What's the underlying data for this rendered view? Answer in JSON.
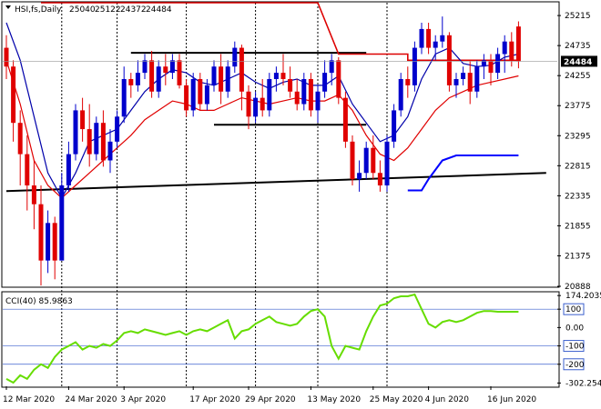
{
  "chart_data": [
    {
      "type": "candlestick",
      "instrument_label": "HSI,fs,Daily",
      "ohlc_header": {
        "open": "25040",
        "high": "25122",
        "low": "24372",
        "close": "24484"
      },
      "current_price_label": "24484",
      "y_ticks": [
        25215,
        24735,
        24255,
        23775,
        23295,
        22815,
        22335,
        21855,
        21375,
        20888
      ],
      "ylim": [
        20888,
        25420
      ],
      "x_labels": [
        "12 Mar 2020",
        "24 Mar 2020",
        "3 Apr 2020",
        "17 Apr 2020",
        "29 Apr 2020",
        "13 May 2020",
        "25 May 2020",
        "4 Jun 2020",
        "16 Jun 2020"
      ],
      "x_label_index": [
        0,
        9,
        17,
        27,
        35,
        44,
        53,
        61,
        70
      ],
      "vlines_index": [
        8,
        16,
        26,
        36,
        45,
        55
      ],
      "grid": false,
      "colors": {
        "bull": "#0000cc",
        "bear": "#e00000",
        "ma_fast": "#0000aa",
        "ma_slow": "#e00000",
        "trend": "#000000",
        "cci": "#66dd00",
        "stop_high": "#dd0000",
        "stop_low": "#0000ff"
      },
      "candles": [
        [
          24700,
          24900,
          24200,
          24400
        ],
        [
          24400,
          24500,
          23200,
          23500
        ],
        [
          23500,
          23700,
          22500,
          23000
        ],
        [
          23000,
          23300,
          22100,
          22500
        ],
        [
          22500,
          22900,
          21800,
          22200
        ],
        [
          22200,
          22500,
          20900,
          21300
        ],
        [
          21300,
          22100,
          21100,
          21900
        ],
        [
          21900,
          22000,
          21000,
          21300
        ],
        [
          21300,
          22700,
          21300,
          22500
        ],
        [
          22500,
          23200,
          22400,
          23000
        ],
        [
          23000,
          23800,
          22900,
          23700
        ],
        [
          23700,
          23900,
          23200,
          23400
        ],
        [
          23400,
          23800,
          22800,
          23000
        ],
        [
          23000,
          23600,
          22900,
          23500
        ],
        [
          23500,
          23700,
          22800,
          22900
        ],
        [
          22900,
          23400,
          22700,
          23200
        ],
        [
          23200,
          23700,
          23100,
          23600
        ],
        [
          23600,
          24400,
          23500,
          24200
        ],
        [
          24200,
          24300,
          23900,
          24100
        ],
        [
          24100,
          24500,
          24000,
          24300
        ],
        [
          24300,
          24600,
          24200,
          24500
        ],
        [
          24500,
          24650,
          23900,
          24000
        ],
        [
          24000,
          24500,
          23900,
          24400
        ],
        [
          24400,
          24600,
          24100,
          24300
        ],
        [
          24300,
          24600,
          24200,
          24500
        ],
        [
          24500,
          24600,
          24050,
          24100
        ],
        [
          24100,
          24200,
          23600,
          23700
        ],
        [
          23700,
          24300,
          23600,
          24200
        ],
        [
          24200,
          24300,
          23700,
          23800
        ],
        [
          23800,
          24200,
          23700,
          24100
        ],
        [
          24100,
          24500,
          24000,
          24400
        ],
        [
          24400,
          24600,
          23800,
          24000
        ],
        [
          24000,
          24500,
          23900,
          24400
        ],
        [
          24400,
          24800,
          24300,
          24700
        ],
        [
          24700,
          24750,
          23700,
          24000
        ],
        [
          24000,
          24100,
          23400,
          23600
        ],
        [
          23600,
          24000,
          23500,
          23900
        ],
        [
          23900,
          24200,
          23600,
          23700
        ],
        [
          23700,
          24300,
          23600,
          24200
        ],
        [
          24200,
          24400,
          24000,
          24300
        ],
        [
          24300,
          24600,
          24100,
          24200
        ],
        [
          24200,
          24400,
          23900,
          24000
        ],
        [
          24000,
          24200,
          23700,
          23800
        ],
        [
          23800,
          24300,
          23700,
          24200
        ],
        [
          24200,
          24300,
          23600,
          23700
        ],
        [
          23700,
          24100,
          23500,
          24000
        ],
        [
          24000,
          24500,
          23900,
          24300
        ],
        [
          24300,
          24600,
          24100,
          24500
        ],
        [
          24500,
          24550,
          23800,
          23900
        ],
        [
          23900,
          24000,
          23100,
          23200
        ],
        [
          23200,
          23300,
          22500,
          22600
        ],
        [
          22600,
          22900,
          22400,
          22700
        ],
        [
          22700,
          23200,
          22600,
          23100
        ],
        [
          23100,
          23300,
          22600,
          22700
        ],
        [
          22700,
          22900,
          22400,
          22500
        ],
        [
          22500,
          23300,
          22400,
          23200
        ],
        [
          23200,
          23800,
          23100,
          23700
        ],
        [
          23700,
          24300,
          23600,
          24200
        ],
        [
          24200,
          24400,
          23900,
          24100
        ],
        [
          24100,
          24800,
          24000,
          24700
        ],
        [
          24700,
          25100,
          24600,
          25000
        ],
        [
          25000,
          25100,
          24600,
          24700
        ],
        [
          24700,
          24900,
          24500,
          24800
        ],
        [
          24800,
          25200,
          24700,
          24900
        ],
        [
          24900,
          24950,
          24000,
          24100
        ],
        [
          24100,
          24300,
          23900,
          24200
        ],
        [
          24200,
          24400,
          24100,
          24300
        ],
        [
          24300,
          24500,
          23800,
          24000
        ],
        [
          24000,
          24500,
          23900,
          24400
        ],
        [
          24400,
          24600,
          24200,
          24500
        ],
        [
          24500,
          24600,
          24100,
          24300
        ],
        [
          24300,
          24700,
          24200,
          24600
        ],
        [
          24600,
          24900,
          24300,
          24800
        ],
        [
          24800,
          24950,
          24400,
          24500
        ],
        [
          25040,
          25122,
          24372,
          24484
        ]
      ],
      "ma_fast": [
        [
          0,
          25100
        ],
        [
          2,
          24500
        ],
        [
          4,
          23600
        ],
        [
          6,
          22700
        ],
        [
          8,
          22300
        ],
        [
          10,
          22700
        ],
        [
          12,
          23200
        ],
        [
          14,
          23300
        ],
        [
          16,
          23400
        ],
        [
          18,
          23700
        ],
        [
          20,
          24000
        ],
        [
          22,
          24200
        ],
        [
          24,
          24350
        ],
        [
          26,
          24300
        ],
        [
          28,
          24150
        ],
        [
          30,
          24100
        ],
        [
          32,
          24200
        ],
        [
          34,
          24300
        ],
        [
          36,
          24150
        ],
        [
          38,
          24050
        ],
        [
          40,
          24150
        ],
        [
          42,
          24200
        ],
        [
          44,
          24100
        ],
        [
          46,
          24100
        ],
        [
          48,
          24250
        ],
        [
          50,
          23800
        ],
        [
          52,
          23500
        ],
        [
          54,
          23200
        ],
        [
          56,
          23300
        ],
        [
          58,
          23600
        ],
        [
          60,
          24200
        ],
        [
          62,
          24600
        ],
        [
          64,
          24700
        ],
        [
          66,
          24450
        ],
        [
          68,
          24400
        ],
        [
          70,
          24420
        ],
        [
          72,
          24550
        ],
        [
          74,
          24600
        ]
      ],
      "ma_slow": [
        [
          0,
          24500
        ],
        [
          2,
          23800
        ],
        [
          4,
          22900
        ],
        [
          6,
          22500
        ],
        [
          8,
          22300
        ],
        [
          10,
          22500
        ],
        [
          12,
          22700
        ],
        [
          14,
          22900
        ],
        [
          16,
          23100
        ],
        [
          18,
          23300
        ],
        [
          20,
          23550
        ],
        [
          22,
          23700
        ],
        [
          24,
          23850
        ],
        [
          26,
          23800
        ],
        [
          28,
          23700
        ],
        [
          30,
          23700
        ],
        [
          32,
          23800
        ],
        [
          34,
          23900
        ],
        [
          36,
          23850
        ],
        [
          38,
          23800
        ],
        [
          40,
          23850
        ],
        [
          42,
          23900
        ],
        [
          44,
          23850
        ],
        [
          46,
          23850
        ],
        [
          48,
          23950
        ],
        [
          50,
          23700
        ],
        [
          52,
          23300
        ],
        [
          54,
          23000
        ],
        [
          56,
          22900
        ],
        [
          58,
          23100
        ],
        [
          60,
          23400
        ],
        [
          62,
          23700
        ],
        [
          64,
          23900
        ],
        [
          66,
          24000
        ],
        [
          68,
          24100
        ],
        [
          70,
          24150
        ],
        [
          72,
          24200
        ],
        [
          74,
          24250
        ]
      ],
      "trend_lines": [
        {
          "points": [
            [
              0,
              22410
            ],
            [
              78,
              22700
            ]
          ]
        },
        {
          "points": [
            [
              18,
              24620
            ],
            [
              52,
              24620
            ]
          ]
        },
        {
          "points": [
            [
              30,
              23470
            ],
            [
              52,
              23470
            ]
          ]
        }
      ],
      "stop_high": [
        [
          5,
          25420
        ],
        [
          45,
          25420
        ],
        [
          48,
          24600
        ],
        [
          58,
          24600
        ],
        [
          58,
          24500
        ],
        [
          74,
          24500
        ]
      ],
      "stop_low": [
        [
          58,
          22420
        ],
        [
          60,
          22420
        ],
        [
          61,
          22600
        ],
        [
          63,
          22900
        ],
        [
          65,
          22980
        ],
        [
          74,
          22980
        ]
      ]
    },
    {
      "type": "line",
      "label": "CCI(40) 85.9863",
      "y_ticks": [
        "174.2035",
        "100",
        "0.00",
        "-100",
        "-200",
        "-302.254"
      ],
      "y_tick_values": [
        174.2035,
        100,
        0,
        -100,
        -200,
        -302.254
      ],
      "ylim": [
        -320,
        190
      ],
      "levels": [
        100,
        -100,
        -200
      ],
      "x": [
        0,
        1,
        2,
        3,
        4,
        5,
        6,
        7,
        8,
        9,
        10,
        11,
        12,
        13,
        14,
        15,
        16,
        17,
        18,
        19,
        20,
        21,
        22,
        23,
        24,
        25,
        26,
        27,
        28,
        29,
        30,
        31,
        32,
        33,
        34,
        35,
        36,
        37,
        38,
        39,
        40,
        41,
        42,
        43,
        44,
        45,
        46,
        47,
        48,
        49,
        50,
        51,
        52,
        53,
        54,
        55,
        56,
        57,
        58,
        59,
        60,
        61,
        62,
        63,
        64,
        65,
        66,
        67,
        68,
        69,
        70,
        71,
        72,
        73,
        74
      ],
      "values": [
        -280,
        -300,
        -260,
        -280,
        -230,
        -200,
        -220,
        -160,
        -120,
        -100,
        -80,
        -120,
        -100,
        -110,
        -90,
        -100,
        -70,
        -30,
        -20,
        -30,
        -10,
        -20,
        -30,
        -40,
        -30,
        -20,
        -40,
        -20,
        -10,
        -20,
        0,
        20,
        40,
        -60,
        -20,
        -10,
        20,
        40,
        60,
        30,
        20,
        10,
        20,
        60,
        90,
        100,
        60,
        -100,
        -170,
        -100,
        -110,
        -120,
        -20,
        60,
        120,
        130,
        160,
        170,
        170,
        180,
        100,
        20,
        0,
        30,
        40,
        30,
        40,
        60,
        80,
        90,
        90,
        85.9863,
        86,
        86,
        86
      ]
    }
  ]
}
